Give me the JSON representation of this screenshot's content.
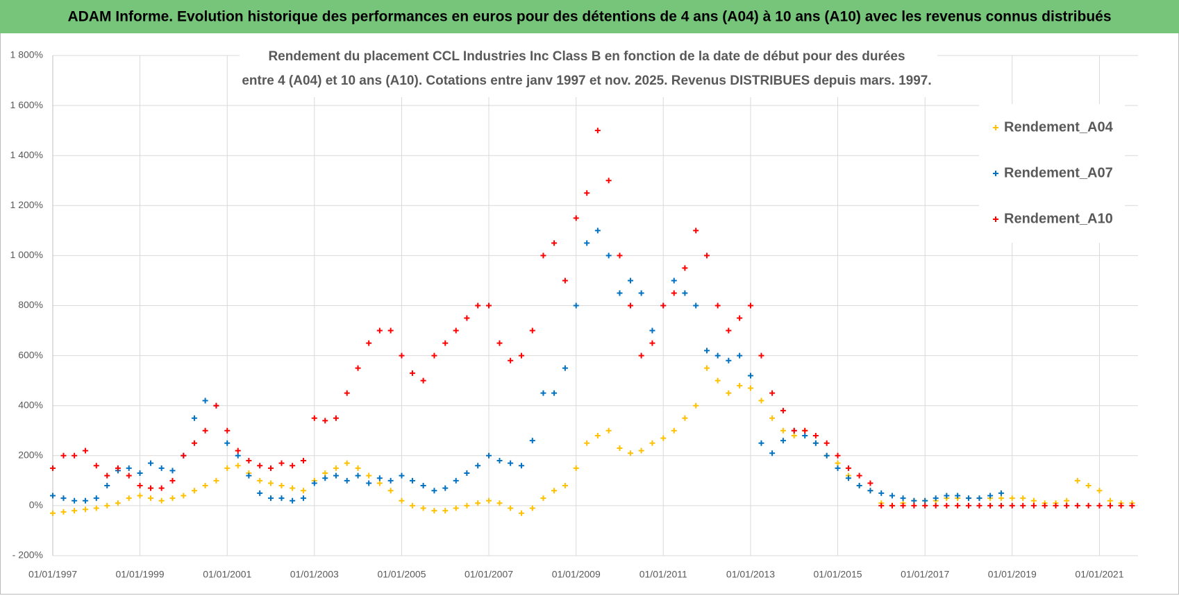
{
  "chart_data": {
    "type": "scatter",
    "title": "ADAM Informe. Evolution historique des performances en euros pour des détentions de 4 ans (A04) à 10 ans (A10) avec les revenus connus distribués",
    "subtitle": [
      "Rendement du placement CCL Industries Inc Class B en fonction de la date de début pour des durées",
      "entre 4 (A04) et 10 ans (A10). Cotations entre janv 1997 et nov. 2025. Revenus DISTRIBUES depuis mars. 1997."
    ],
    "legend": "upper right",
    "grid": true,
    "xlim": [
      "1997-01-01",
      "2021-11-20"
    ],
    "xticks": [
      {
        "value": "1997-01-01",
        "label": "01/01/1997"
      },
      {
        "value": "1999-01-01",
        "label": "01/01/1999"
      },
      {
        "value": "2001-01-01",
        "label": "01/01/2001"
      },
      {
        "value": "2003-01-01",
        "label": "01/01/2003"
      },
      {
        "value": "2005-01-01",
        "label": "01/01/2005"
      },
      {
        "value": "2007-01-01",
        "label": "01/01/2007"
      },
      {
        "value": "2009-01-01",
        "label": "01/01/2009"
      },
      {
        "value": "2011-01-01",
        "label": "01/01/2011"
      },
      {
        "value": "2013-01-01",
        "label": "01/01/2013"
      },
      {
        "value": "2015-01-01",
        "label": "01/01/2015"
      },
      {
        "value": "2017-01-01",
        "label": "01/01/2017"
      },
      {
        "value": "2019-01-01",
        "label": "01/01/2019"
      },
      {
        "value": "2021-01-01",
        "label": "01/01/2021"
      }
    ],
    "ylim": [
      -200,
      1800
    ],
    "yticks": [
      {
        "value": -200,
        "label": "- 200%"
      },
      {
        "value": 0,
        "label": "0%"
      },
      {
        "value": 200,
        "label": "200%"
      },
      {
        "value": 400,
        "label": "400%"
      },
      {
        "value": 600,
        "label": "600%"
      },
      {
        "value": 800,
        "label": "800%"
      },
      {
        "value": 1000,
        "label": "1 000%"
      },
      {
        "value": 1200,
        "label": "1 200%"
      },
      {
        "value": 1400,
        "label": "1 400%"
      },
      {
        "value": 1600,
        "label": "1 600%"
      },
      {
        "value": 1800,
        "label": "1 800%"
      }
    ],
    "x": [
      "1997-01-01",
      "1997-04-01",
      "1997-07-01",
      "1997-10-01",
      "1998-01-01",
      "1998-04-01",
      "1998-07-01",
      "1998-10-01",
      "1999-01-01",
      "1999-04-01",
      "1999-07-01",
      "1999-10-01",
      "2000-01-01",
      "2000-04-01",
      "2000-07-01",
      "2000-10-01",
      "2001-01-01",
      "2001-04-01",
      "2001-07-01",
      "2001-10-01",
      "2002-01-01",
      "2002-04-01",
      "2002-07-01",
      "2002-10-01",
      "2003-01-01",
      "2003-04-01",
      "2003-07-01",
      "2003-10-01",
      "2004-01-01",
      "2004-04-01",
      "2004-07-01",
      "2004-10-01",
      "2005-01-01",
      "2005-04-01",
      "2005-07-01",
      "2005-10-01",
      "2006-01-01",
      "2006-04-01",
      "2006-07-01",
      "2006-10-01",
      "2007-01-01",
      "2007-04-01",
      "2007-07-01",
      "2007-10-01",
      "2008-01-01",
      "2008-04-01",
      "2008-07-01",
      "2008-10-01",
      "2009-01-01",
      "2009-04-01",
      "2009-07-01",
      "2009-10-01",
      "2010-01-01",
      "2010-04-01",
      "2010-07-01",
      "2010-10-01",
      "2011-01-01",
      "2011-04-01",
      "2011-07-01",
      "2011-10-01",
      "2012-01-01",
      "2012-04-01",
      "2012-07-01",
      "2012-10-01",
      "2013-01-01",
      "2013-04-01",
      "2013-07-01",
      "2013-10-01",
      "2014-01-01",
      "2014-04-01",
      "2014-07-01",
      "2014-10-01",
      "2015-01-01",
      "2015-04-01",
      "2015-07-01",
      "2015-10-01",
      "2016-01-01",
      "2016-04-01",
      "2016-07-01",
      "2016-10-01",
      "2017-01-01",
      "2017-04-01",
      "2017-07-01",
      "2017-10-01",
      "2018-01-01",
      "2018-04-01",
      "2018-07-01",
      "2018-10-01",
      "2019-01-01",
      "2019-04-01",
      "2019-07-01",
      "2019-10-01",
      "2020-01-01",
      "2020-04-01",
      "2020-07-01",
      "2020-10-01",
      "2021-01-01",
      "2021-04-01",
      "2021-07-01",
      "2021-10-01"
    ],
    "series": [
      {
        "name": "Rendement_A04",
        "color": "#FFC000",
        "values": [
          -30,
          -25,
          -20,
          -15,
          -10,
          0,
          10,
          30,
          40,
          30,
          20,
          30,
          40,
          60,
          80,
          100,
          150,
          160,
          130,
          100,
          90,
          80,
          70,
          60,
          100,
          130,
          150,
          170,
          150,
          120,
          90,
          60,
          20,
          0,
          -10,
          -20,
          -20,
          -10,
          0,
          10,
          20,
          10,
          -10,
          -30,
          -10,
          30,
          60,
          80,
          150,
          250,
          280,
          300,
          230,
          210,
          220,
          250,
          270,
          300,
          350,
          400,
          550,
          500,
          450,
          480,
          470,
          420,
          350,
          300,
          280,
          300,
          250,
          200,
          170,
          120,
          80,
          60,
          10,
          0,
          10,
          20,
          20,
          20,
          30,
          30,
          30,
          30,
          30,
          30,
          30,
          30,
          20,
          10,
          10,
          20,
          100,
          80,
          60,
          20,
          10,
          10
        ]
      },
      {
        "name": "Rendement_A07",
        "color": "#0070C0",
        "values": [
          40,
          30,
          20,
          20,
          30,
          80,
          140,
          150,
          130,
          170,
          150,
          140,
          200,
          350,
          420,
          400,
          250,
          200,
          120,
          50,
          30,
          30,
          20,
          30,
          90,
          110,
          120,
          100,
          120,
          90,
          110,
          100,
          120,
          100,
          80,
          60,
          70,
          100,
          130,
          160,
          200,
          180,
          170,
          160,
          260,
          450,
          450,
          550,
          800,
          1050,
          1100,
          1000,
          850,
          900,
          850,
          700,
          800,
          900,
          850,
          800,
          620,
          600,
          580,
          600,
          520,
          250,
          210,
          260,
          300,
          280,
          250,
          200,
          150,
          110,
          80,
          60,
          50,
          40,
          30,
          20,
          20,
          30,
          40,
          40,
          30,
          30,
          40,
          50,
          null,
          null,
          null,
          null,
          null,
          null,
          null,
          null,
          null,
          null,
          null,
          null
        ]
      },
      {
        "name": "Rendement_A10",
        "color": "#FF0000",
        "values": [
          150,
          200,
          200,
          220,
          160,
          120,
          150,
          120,
          80,
          70,
          70,
          100,
          200,
          250,
          300,
          400,
          300,
          220,
          180,
          160,
          150,
          170,
          160,
          180,
          350,
          340,
          350,
          450,
          550,
          650,
          700,
          700,
          600,
          530,
          500,
          600,
          650,
          700,
          750,
          800,
          800,
          650,
          580,
          600,
          700,
          1000,
          1050,
          900,
          1150,
          1250,
          1500,
          1300,
          1000,
          800,
          600,
          650,
          800,
          850,
          950,
          1100,
          1000,
          800,
          700,
          750,
          800,
          600,
          450,
          380,
          300,
          300,
          280,
          250,
          200,
          150,
          120,
          90,
          0,
          0,
          0,
          0,
          0,
          0,
          0,
          0,
          0,
          0,
          0,
          0,
          0,
          0,
          0,
          0,
          0,
          0,
          0,
          0,
          0,
          0,
          0,
          0
        ]
      }
    ]
  }
}
